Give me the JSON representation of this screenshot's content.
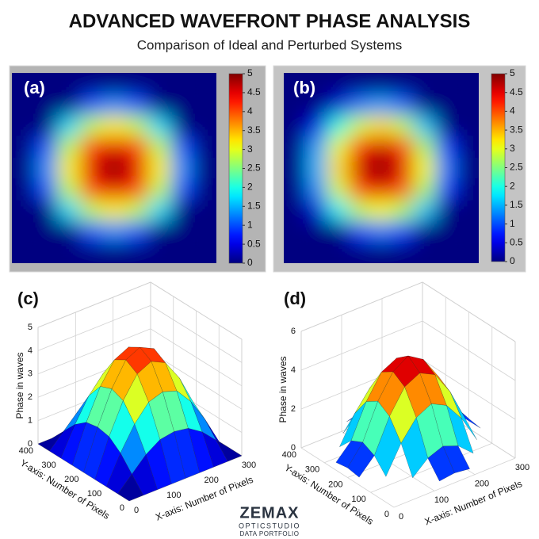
{
  "header": {
    "title": "ADVANCED WAVEFRONT PHASE ANALYSIS",
    "subtitle": "Comparison of Ideal and Perturbed Systems"
  },
  "chart_data": [
    {
      "type": "heatmap",
      "label": "(a)",
      "colormap": "jet",
      "clim": [
        0,
        5
      ],
      "colorbar_ticks": [
        0,
        0.5,
        1,
        1.5,
        2,
        2.5,
        3,
        3.5,
        4,
        4.5,
        5
      ],
      "z": [
        [
          0,
          0,
          0,
          0,
          0,
          0,
          0,
          0,
          0
        ],
        [
          0,
          0,
          0,
          1.0,
          1.3,
          1.0,
          0,
          0,
          0
        ],
        [
          0,
          0,
          1.7,
          2.8,
          3.2,
          2.8,
          1.7,
          0,
          0
        ],
        [
          0,
          1.0,
          2.8,
          4.1,
          4.5,
          4.1,
          2.8,
          1.0,
          0
        ],
        [
          0,
          1.3,
          3.2,
          4.5,
          5,
          4.5,
          3.2,
          1.3,
          0
        ],
        [
          0,
          1.0,
          2.8,
          4.1,
          4.5,
          4.1,
          2.8,
          1.0,
          0
        ],
        [
          0,
          0,
          1.7,
          2.8,
          3.2,
          2.8,
          1.7,
          0,
          0
        ],
        [
          0,
          0,
          0,
          1.0,
          1.3,
          1.0,
          0,
          0,
          0
        ],
        [
          0,
          0,
          0,
          0,
          0,
          0,
          0,
          0,
          0
        ]
      ]
    },
    {
      "type": "heatmap",
      "label": "(b)",
      "colormap": "jet",
      "clim": [
        0,
        5
      ],
      "colorbar_ticks": [
        0,
        0.5,
        1,
        1.5,
        2,
        2.5,
        3,
        3.5,
        4,
        4.5,
        5
      ],
      "z": [
        [
          0,
          0,
          0,
          0,
          0,
          0,
          0,
          0,
          0
        ],
        [
          0,
          0,
          0.4,
          1.2,
          1.4,
          1.1,
          0,
          0,
          0
        ],
        [
          0,
          0.5,
          2.0,
          2.9,
          3.3,
          2.8,
          1.6,
          0,
          0
        ],
        [
          0,
          1.4,
          3.0,
          4.2,
          4.6,
          4.1,
          2.7,
          0.9,
          0
        ],
        [
          0,
          1.5,
          3.3,
          4.6,
          5,
          4.5,
          3.1,
          1.2,
          0
        ],
        [
          0,
          1.3,
          2.9,
          4.1,
          4.5,
          4.0,
          2.7,
          0.9,
          0
        ],
        [
          0,
          0.4,
          1.8,
          2.8,
          3.1,
          2.7,
          1.6,
          0,
          0
        ],
        [
          0,
          0,
          0,
          0.9,
          1.2,
          0.9,
          0,
          0,
          0
        ],
        [
          0,
          0,
          0,
          0,
          0,
          0,
          0,
          0,
          0
        ]
      ]
    },
    {
      "type": "surface",
      "label": "(c)",
      "colormap": "jet",
      "clim": [
        0,
        5
      ],
      "x": [
        0,
        37.5,
        75,
        112.5,
        150,
        187.5,
        225,
        262.5,
        300
      ],
      "y": [
        0,
        50,
        100,
        150,
        200,
        250,
        300,
        350,
        400
      ],
      "z": [
        [
          0,
          0,
          0,
          0,
          0,
          0,
          0,
          0,
          0
        ],
        [
          0,
          0.6,
          1.2,
          1.6,
          1.7,
          1.6,
          1.2,
          0.6,
          0
        ],
        [
          0,
          1.2,
          2.2,
          2.9,
          3.1,
          2.9,
          2.2,
          1.2,
          0
        ],
        [
          0,
          1.6,
          2.9,
          3.8,
          4.1,
          3.8,
          2.9,
          1.6,
          0
        ],
        [
          0,
          1.7,
          3.1,
          4.1,
          4.4,
          4.1,
          3.1,
          1.7,
          0
        ],
        [
          0,
          1.6,
          2.9,
          3.8,
          4.1,
          3.8,
          2.9,
          1.6,
          0
        ],
        [
          0,
          1.2,
          2.2,
          2.9,
          3.1,
          2.9,
          2.2,
          1.2,
          0
        ],
        [
          0,
          0.6,
          1.2,
          1.6,
          1.7,
          1.6,
          1.2,
          0.6,
          0
        ],
        [
          0,
          0,
          0,
          0,
          0,
          0,
          0,
          0,
          0
        ]
      ],
      "xlim": [
        0,
        300
      ],
      "ylim": [
        0,
        400
      ],
      "zlim": [
        0,
        5
      ],
      "xticks": [
        0,
        100,
        200,
        300
      ],
      "yticks": [
        0,
        100,
        200,
        300,
        400
      ],
      "zticks": [
        0,
        1,
        2,
        3,
        4,
        5
      ],
      "xlabel": "X-axis: Number of Pixels",
      "ylabel": "Y-axis: Number of Pixels",
      "zlabel": "Phase in waves"
    },
    {
      "type": "surface",
      "label": "(d)",
      "colormap": "jet",
      "clim": [
        0,
        5
      ],
      "x": [
        0,
        37.5,
        75,
        112.5,
        150,
        187.5,
        225,
        262.5,
        300
      ],
      "y": [
        0,
        50,
        100,
        150,
        200,
        250,
        300,
        350,
        400
      ],
      "z": [
        [
          null,
          null,
          null,
          0.4,
          0.5,
          0.4,
          null,
          null,
          null
        ],
        [
          null,
          null,
          0.5,
          1.2,
          1.5,
          1.2,
          0.5,
          null,
          null
        ],
        [
          null,
          0.5,
          1.9,
          2.9,
          3.3,
          2.9,
          1.9,
          0.5,
          null
        ],
        [
          0.4,
          1.2,
          2.9,
          4.1,
          4.5,
          4.1,
          2.9,
          1.2,
          0.4
        ],
        [
          0.5,
          1.5,
          3.3,
          4.5,
          5,
          4.5,
          3.3,
          1.5,
          0.5
        ],
        [
          0.4,
          1.2,
          2.9,
          4.1,
          4.5,
          4.1,
          2.9,
          1.2,
          0.4
        ],
        [
          null,
          0.5,
          1.9,
          2.9,
          3.3,
          2.9,
          1.9,
          0.5,
          null
        ],
        [
          null,
          null,
          0.5,
          1.2,
          1.5,
          1.2,
          0.5,
          null,
          null
        ],
        [
          null,
          null,
          null,
          0.4,
          0.5,
          0.4,
          null,
          null,
          null
        ]
      ],
      "xlim": [
        0,
        300
      ],
      "ylim": [
        0,
        400
      ],
      "zlim": [
        0,
        6
      ],
      "xticks": [
        0,
        100,
        200,
        300
      ],
      "yticks": [
        0,
        100,
        200,
        300,
        400
      ],
      "zticks": [
        0,
        2,
        4,
        6
      ],
      "xlabel": "X-axis: Number of Pixels",
      "ylabel": "Y-axis: Number of Pixels",
      "zlabel": "Phase in waves"
    }
  ],
  "footer": {
    "brand": "ZEMAX",
    "product": "OPTICSTUDIO",
    "tagline": "DATA PORTFOLIO"
  }
}
